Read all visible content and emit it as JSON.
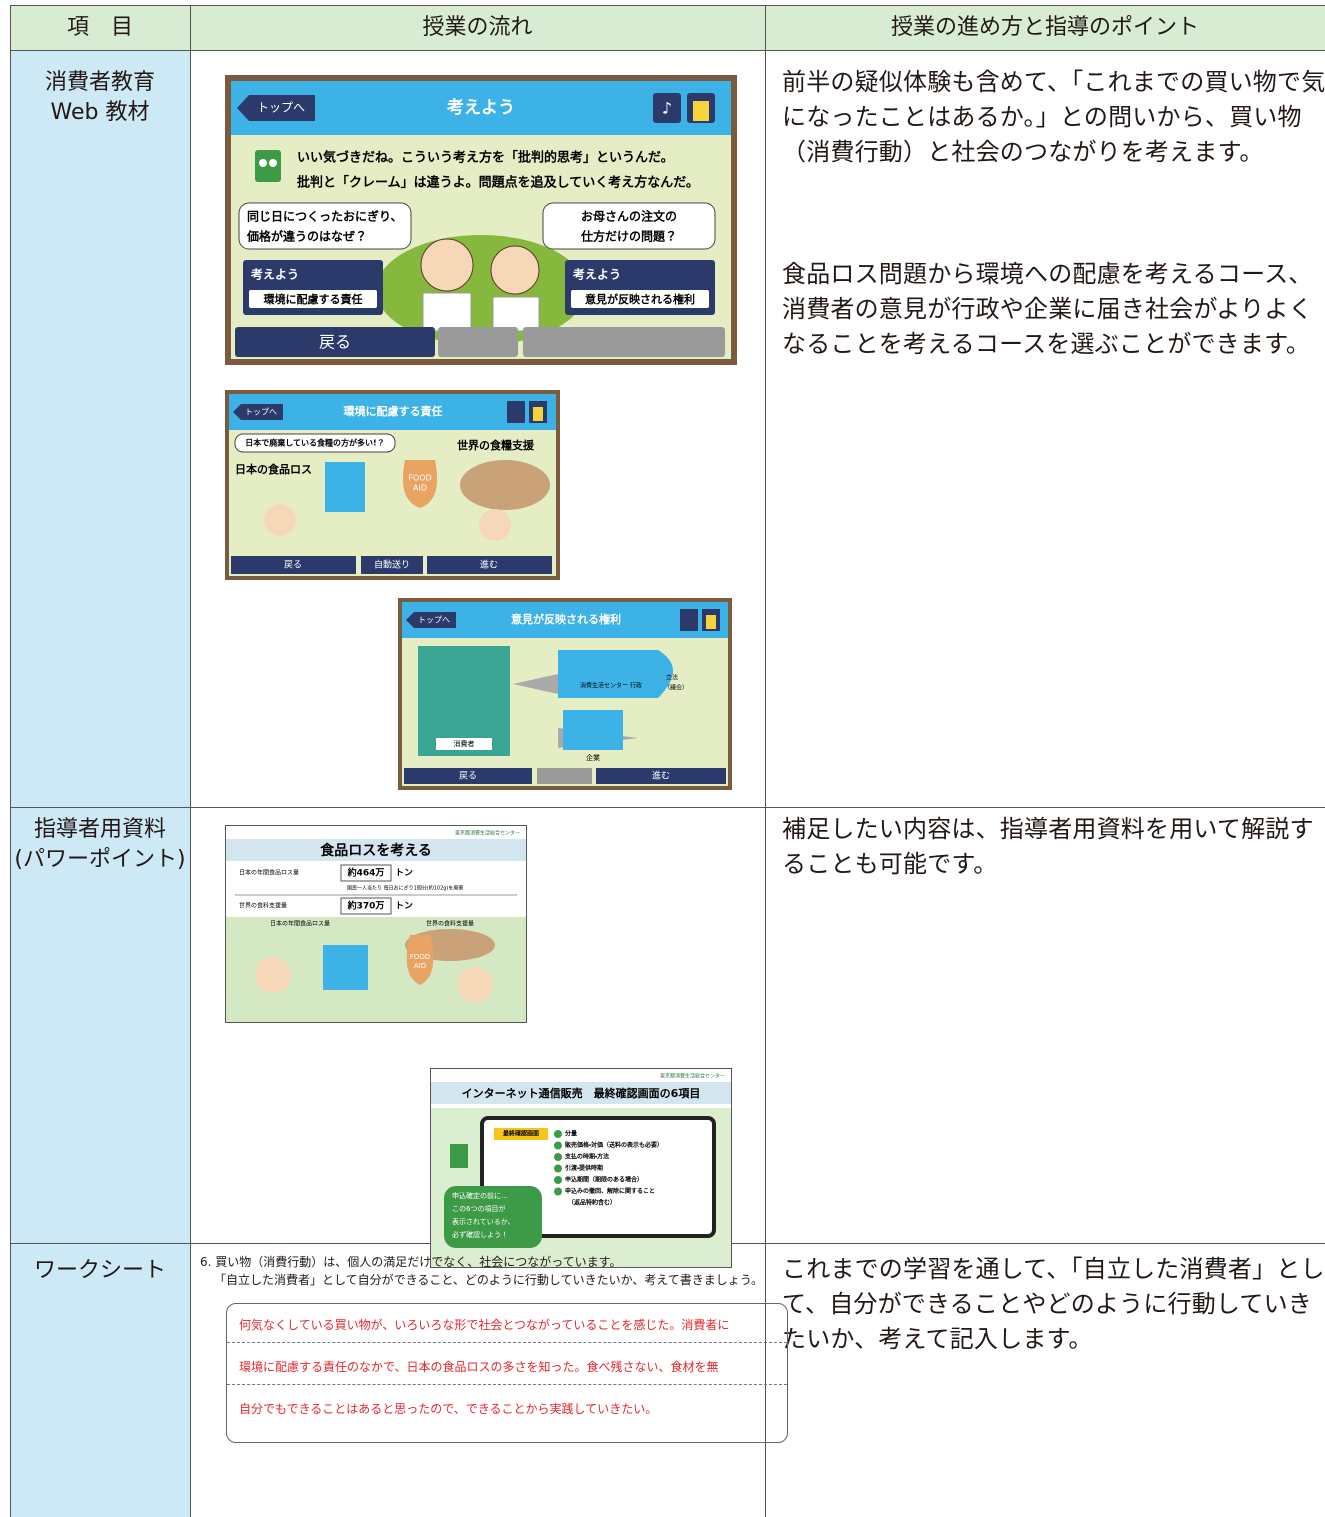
{
  "table": {
    "header": [
      "項　目",
      "授業の流れ",
      "授業の進め方と指導のポイント"
    ],
    "rows": [
      {
        "item": [
          "消費者教育",
          "Web 教材"
        ],
        "points": [
          "前半の疑似体験も含めて、「これまでの買い物で気になったことはあるか。」との問いから、買い物（消費行動）と社会のつながりを考えます。",
          "食品ロス問題から環境への配慮を考えるコース、消費者の意見が行政や企業に届き社会がよりよくなることを考えるコースを選ぶことができます。"
        ]
      },
      {
        "item": [
          "指導者用資料",
          "(パワーポイント)"
        ],
        "points": [
          "補足したい内容は、指導者用資料を用いて解説することも可能です。"
        ]
      },
      {
        "item": [
          "ワークシート"
        ],
        "points": [
          "これまでの学習を通して、「自立した消費者」として、自分ができることやどのように行動していきたいか、考えて記入します。"
        ]
      }
    ]
  },
  "screens": [
    {
      "back": "トップへ",
      "title": "考えよう",
      "speech": [
        "いい気づきだね。こういう考え方を「批判的思考」というんだ。",
        "批判と「クレーム」は違うよ。問題点を追及していく考え方なんだ。"
      ],
      "bubble_left": [
        "同じ日につくったおにぎり、",
        "価格が違うのはなぜ？"
      ],
      "bubble_right": [
        "お母さんの注文の",
        "仕方だけの問題？"
      ],
      "course_left": {
        "label": "考えよう",
        "name": "環境に配慮する責任"
      },
      "course_right": {
        "label": "考えよう",
        "name": "意見が反映される権利"
      },
      "return": "戻る"
    },
    {
      "back": "トップへ",
      "title": "環境に配慮する責任",
      "bubble": "日本で廃棄している食糧の方が多い!？",
      "left_label": "日本の食品ロス",
      "right_label": "世界の食糧支援",
      "bag": [
        "FOOD",
        "AID"
      ],
      "buttons": [
        "戻る",
        "自動送り",
        "進む"
      ]
    },
    {
      "back": "トップへ",
      "title": "意見が反映される権利",
      "labels": [
        "消費生活センター",
        "行政",
        "立法",
        "（議会）",
        "消費者",
        "企業"
      ],
      "buttons": [
        "戻る",
        "進む"
      ]
    }
  ],
  "slides": [
    {
      "org": "東京都消費生活総合センター",
      "title": "食品ロスを考える",
      "row1": {
        "label": "日本の年間食品ロス量",
        "value": "約464万",
        "unit": "トン",
        "note": "国民一人当たり 毎日おにぎり1個分(約102g)を廃棄"
      },
      "row2": {
        "label": "世界の食料支援量",
        "value": "約370万",
        "unit": "トン"
      },
      "captions": [
        "日本の年間食品ロス量",
        "世界の食料支援量"
      ],
      "bag": [
        "FOOD",
        "AID"
      ]
    },
    {
      "org": "東京都消費生活総合センター",
      "title": "インターネット通信販売　最終確認画面の6項目",
      "tag": "最終確認画面",
      "items": [
        "分量",
        "販売価格・対価（送料の表示も必要）",
        "支払の時期・方法",
        "引渡・提供時期",
        "申込期間（期限のある場合）",
        "申込みの撤回、解除に関すること",
        "（返品特約含む）"
      ],
      "bubble": [
        "申込確定の前に…",
        "この6つの項目が",
        "表示されているか、",
        "必ず確認しよう！"
      ]
    }
  ],
  "worksheet": {
    "question": [
      "6. 買い物（消費行動）は、個人の満足だけでなく、社会につながっています。",
      "「自立した消費者」として自分ができること、どのように行動していきたいか、考えて書きましょう。"
    ],
    "answers": [
      "何気なくしている買い物が、いろいろな形で社会とつながっていることを感じた。消費者に",
      "環境に配慮する責任のなかで、日本の食品ロスの多さを知った。食べ残さない、食材を無",
      "自分でもできることはあると思ったので、できることから実践していきたい。"
    ]
  }
}
